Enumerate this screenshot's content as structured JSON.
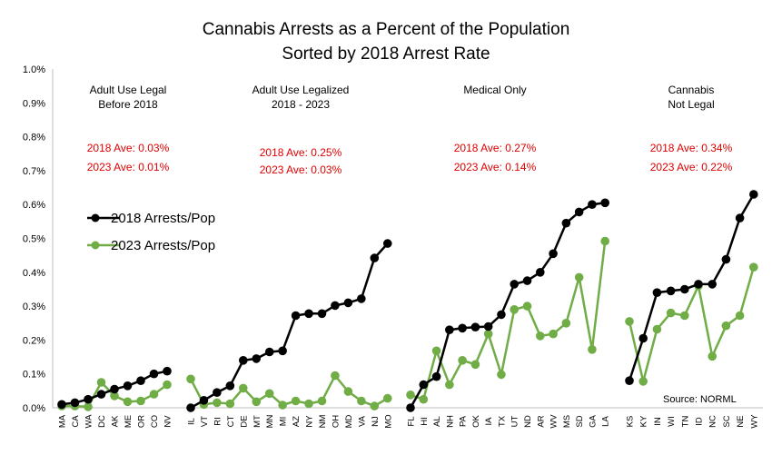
{
  "chart_data": {
    "type": "line",
    "title_line1": "Cannabis Arrests as a Percent of the Population",
    "title_line2": "Sorted by 2018 Arrest Rate",
    "ylim": [
      0,
      1.0
    ],
    "yticks": [
      "0.0%",
      "0.1%",
      "0.2%",
      "0.3%",
      "0.4%",
      "0.5%",
      "0.6%",
      "0.7%",
      "0.8%",
      "0.9%",
      "1.0%"
    ],
    "grid": false,
    "legend": {
      "placement": "left",
      "items": [
        {
          "label": "2018 Arrests/Pop",
          "color": "#000000"
        },
        {
          "label": "2023 Arrests/Pop",
          "color": "#70ad47"
        }
      ]
    },
    "source": "Source: NORML",
    "groups": [
      {
        "name_line1": "Adult Use Legal",
        "name_line2": "Before 2018",
        "ave2018": "2018 Ave: 0.03%",
        "ave2023": "2023 Ave: 0.01%",
        "categories": [
          "MA",
          "CA",
          "WA",
          "DC",
          "AK",
          "ME",
          "OR",
          "CO",
          "NV"
        ],
        "series": [
          {
            "name": "2018 Arrests/Pop",
            "values": [
              0.01,
              0.015,
              0.025,
              0.04,
              0.055,
              0.065,
              0.08,
              0.1,
              0.108
            ]
          },
          {
            "name": "2023 Arrests/Pop",
            "values": [
              0.005,
              0.005,
              0.003,
              0.075,
              0.035,
              0.018,
              0.02,
              0.04,
              0.068
            ]
          }
        ]
      },
      {
        "name_line1": "Adult Use Legalized",
        "name_line2": "2018 - 2023",
        "ave2018": "2018 Ave: 0.25%",
        "ave2023": "2023 Ave: 0.03%",
        "categories": [
          "IL",
          "VT",
          "RI",
          "CT",
          "DE",
          "MT",
          "MN",
          "MI",
          "AZ",
          "NY",
          "NM",
          "OH",
          "MD",
          "VA",
          "NJ",
          "MO"
        ],
        "series": [
          {
            "name": "2018 Arrests/Pop",
            "values": [
              0.0,
              0.022,
              0.045,
              0.065,
              0.14,
              0.145,
              0.165,
              0.168,
              0.272,
              0.278,
              0.278,
              0.302,
              0.31,
              0.322,
              0.442,
              0.485
            ]
          },
          {
            "name": "2023 Arrests/Pop",
            "values": [
              0.085,
              0.01,
              0.015,
              0.012,
              0.058,
              0.018,
              0.042,
              0.008,
              0.02,
              0.012,
              0.02,
              0.095,
              0.048,
              0.02,
              0.005,
              0.028
            ]
          }
        ]
      },
      {
        "name_line1": "Medical Only",
        "name_line2": "",
        "ave2018": "2018 Ave: 0.27%",
        "ave2023": "2023 Ave: 0.14%",
        "categories": [
          "FL",
          "HI",
          "AL",
          "NH",
          "PA",
          "OK",
          "IA",
          "TX",
          "UT",
          "ND",
          "AR",
          "WV",
          "MS",
          "SD",
          "GA",
          "LA"
        ],
        "series": [
          {
            "name": "2018 Arrests/Pop",
            "values": [
              0.0,
              0.068,
              0.092,
              0.23,
              0.235,
              0.238,
              0.24,
              0.275,
              0.365,
              0.375,
              0.4,
              0.455,
              0.545,
              0.578,
              0.6,
              0.605
            ]
          },
          {
            "name": "2023 Arrests/Pop",
            "values": [
              0.038,
              0.025,
              0.168,
              0.068,
              0.14,
              0.128,
              0.218,
              0.098,
              0.29,
              0.3,
              0.212,
              0.218,
              0.25,
              0.385,
              0.172,
              0.492
            ]
          }
        ]
      },
      {
        "name_line1": "Cannabis",
        "name_line2": "Not Legal",
        "ave2018": "2018 Ave: 0.34%",
        "ave2023": "2023 Ave: 0.22%",
        "categories": [
          "KS",
          "KY",
          "IN",
          "WI",
          "TN",
          "ID",
          "NC",
          "SC",
          "NE",
          "WY"
        ],
        "series": [
          {
            "name": "2018 Arrests/Pop",
            "values": [
              0.08,
              0.205,
              0.34,
              0.345,
              0.35,
              0.365,
              0.365,
              0.438,
              0.56,
              0.63
            ]
          },
          {
            "name": "2023 Arrests/Pop",
            "values": [
              0.255,
              0.078,
              0.232,
              0.28,
              0.272,
              0.36,
              0.152,
              0.242,
              0.272,
              0.415
            ]
          }
        ]
      }
    ]
  }
}
